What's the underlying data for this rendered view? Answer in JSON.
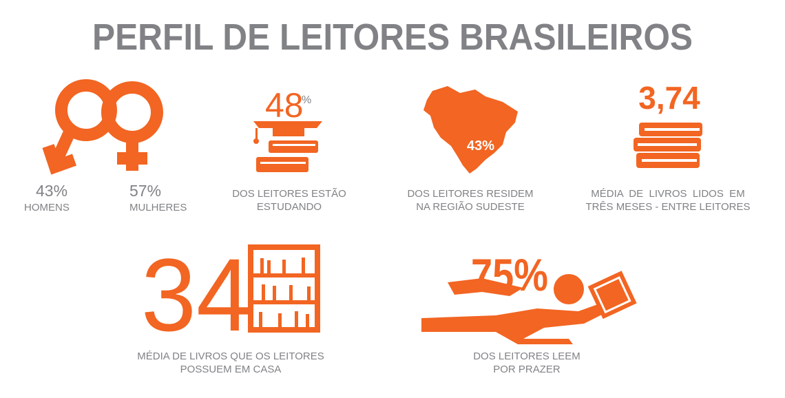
{
  "title": "PERFIL DE LEITORES BRASILEIROS",
  "gender": {
    "men": {
      "value": "43%",
      "label": "HOMENS"
    },
    "women": {
      "value": "57%",
      "label": "MULHERES"
    }
  },
  "studying": {
    "number": "48",
    "unit": "%",
    "caption": [
      "DOS LEITORES ESTÃO",
      "ESTUDANDO"
    ]
  },
  "southeast": {
    "value": "43%",
    "caption": [
      "DOS LEITORES RESIDEM",
      "NA REGIÃO SUDESTE"
    ]
  },
  "books_read": {
    "value": "3,74",
    "caption": [
      "MÉDIA  DE  LIVROS  LIDOS  EM",
      "TRÊS MESES - ENTRE LEITORES"
    ]
  },
  "books_owned": {
    "value": "34",
    "caption": [
      "MÉDIA DE LIVROS QUE OS LEITORES",
      "POSSUEM EM CASA"
    ]
  },
  "pleasure": {
    "value": "75%",
    "caption": [
      "DOS LEITORES LEEM",
      "POR PRAZER"
    ]
  }
}
